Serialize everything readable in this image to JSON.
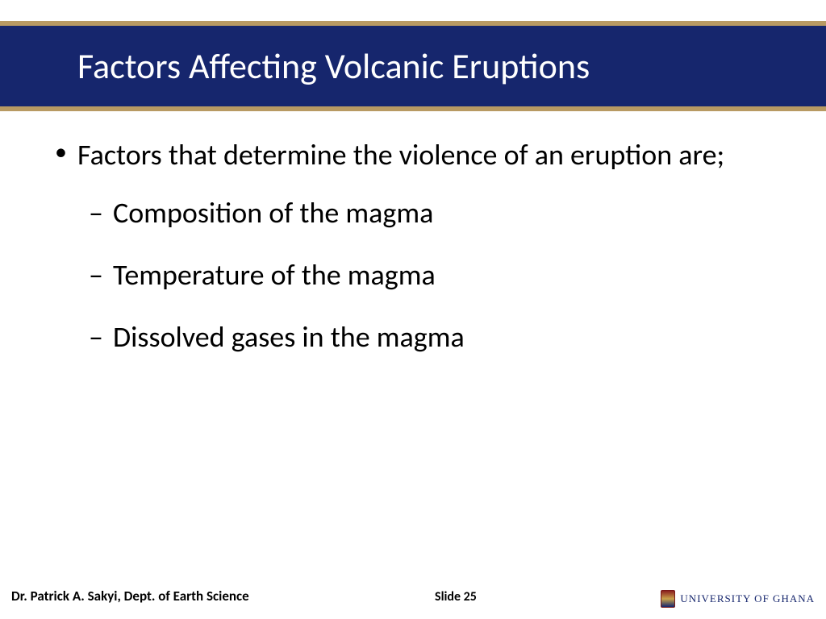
{
  "colors": {
    "navy": "#16266d",
    "gold": "#b89a63",
    "white": "#ffffff",
    "black": "#000000"
  },
  "header": {
    "title": "Factors Affecting Volcanic Eruptions"
  },
  "content": {
    "main_bullet": "Factors that determine the violence of an eruption are;",
    "sub_bullets": [
      "Composition of the magma",
      "Temperature of the magma",
      "Dissolved gases in the magma"
    ]
  },
  "footer": {
    "author": "Dr. Patrick A. Sakyi, Dept. of Earth Science",
    "slide_label": "Slide 25",
    "university": "UNIVERSITY OF GHANA"
  }
}
